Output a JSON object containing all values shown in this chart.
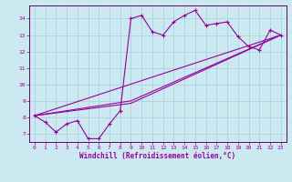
{
  "xlabel": "Windchill (Refroidissement éolien,°C)",
  "bg_color": "#cce8f0",
  "grid_color": "#aad4dd",
  "line_color": "#990099",
  "spine_color": "#660066",
  "xlim": [
    -0.5,
    23.5
  ],
  "ylim": [
    6.5,
    14.8
  ],
  "yticks": [
    7,
    8,
    9,
    10,
    11,
    12,
    13,
    14
  ],
  "xticks": [
    0,
    1,
    2,
    3,
    4,
    5,
    6,
    7,
    8,
    9,
    10,
    11,
    12,
    13,
    14,
    15,
    16,
    17,
    18,
    19,
    20,
    21,
    22,
    23
  ],
  "series1_x": [
    0,
    1,
    2,
    3,
    4,
    5,
    6,
    7,
    8,
    9,
    10,
    11,
    12,
    13,
    14,
    15,
    16,
    17,
    18,
    19,
    20,
    21,
    22,
    23
  ],
  "series1_y": [
    8.1,
    7.7,
    7.1,
    7.6,
    7.8,
    6.7,
    6.7,
    7.6,
    8.4,
    14.0,
    14.2,
    13.2,
    13.0,
    13.8,
    14.2,
    14.5,
    13.6,
    13.7,
    13.8,
    12.9,
    12.3,
    12.1,
    13.3,
    13.0
  ],
  "series2_x": [
    0,
    23
  ],
  "series2_y": [
    8.1,
    13.0
  ],
  "series3_x": [
    0,
    9,
    23
  ],
  "series3_y": [
    8.1,
    9.0,
    13.0
  ],
  "series4_x": [
    0,
    9,
    23
  ],
  "series4_y": [
    8.1,
    8.85,
    13.0
  ]
}
